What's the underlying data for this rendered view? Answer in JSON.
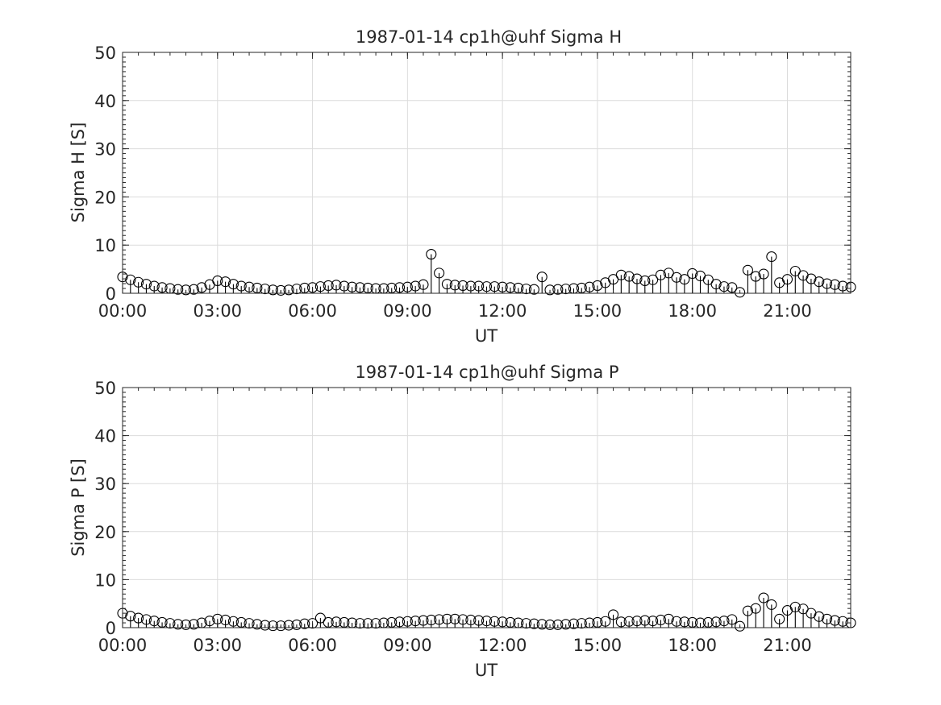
{
  "chart_data": [
    {
      "type": "scatter",
      "style": "stem",
      "title": "1987-01-14  cp1h@uhf Sigma H",
      "xlabel": "UT",
      "ylabel": "Sigma H [S]",
      "xlim": [
        0,
        23
      ],
      "ylim": [
        0,
        50
      ],
      "xticks": [
        0,
        3,
        6,
        9,
        12,
        15,
        18,
        21
      ],
      "xtick_labels": [
        "00:00",
        "03:00",
        "06:00",
        "09:00",
        "12:00",
        "15:00",
        "18:00",
        "21:00"
      ],
      "yticks": [
        0,
        10,
        20,
        30,
        40,
        50
      ],
      "ytick_labels": [
        "0",
        "10",
        "20",
        "30",
        "40",
        "50"
      ],
      "grid": true,
      "marker": "open-circle",
      "marker_color": "#000000",
      "series": [
        {
          "x": [
            0.0,
            0.25,
            0.5,
            0.75,
            1.0,
            1.25,
            1.5,
            1.75,
            2.0,
            2.25,
            2.5,
            2.75,
            3.0,
            3.25,
            3.5,
            3.75,
            4.0,
            4.25,
            4.5,
            4.75,
            5.0,
            5.25,
            5.5,
            5.75,
            6.0,
            6.25,
            6.5,
            6.75,
            7.0,
            7.25,
            7.5,
            7.75,
            8.0,
            8.25,
            8.5,
            8.75,
            9.0,
            9.25,
            9.5,
            9.75,
            10.0,
            10.25,
            10.5,
            10.75,
            11.0,
            11.25,
            11.5,
            11.75,
            12.0,
            12.25,
            12.5,
            12.75,
            13.0,
            13.25,
            13.5,
            13.75,
            14.0,
            14.25,
            14.5,
            14.75,
            15.0,
            15.25,
            15.5,
            15.75,
            16.0,
            16.25,
            16.5,
            16.75,
            17.0,
            17.25,
            17.5,
            17.75,
            18.0,
            18.25,
            18.5,
            18.75,
            19.0,
            19.25,
            19.5,
            19.75,
            20.0,
            20.25,
            20.5,
            20.75,
            21.0,
            21.25,
            21.5,
            21.75,
            22.0,
            22.25,
            22.5,
            22.75,
            23.0
          ],
          "y": [
            3.4,
            2.8,
            2.3,
            1.9,
            1.5,
            1.2,
            1.0,
            0.8,
            0.7,
            0.8,
            1.2,
            1.8,
            2.6,
            2.4,
            1.9,
            1.5,
            1.3,
            1.1,
            0.9,
            0.7,
            0.6,
            0.7,
            0.9,
            1.1,
            1.2,
            1.4,
            1.6,
            1.7,
            1.5,
            1.3,
            1.2,
            1.1,
            1.0,
            1.0,
            1.1,
            1.2,
            1.3,
            1.5,
            1.8,
            8.1,
            4.2,
            1.9,
            1.7,
            1.6,
            1.5,
            1.5,
            1.4,
            1.4,
            1.3,
            1.2,
            1.1,
            0.9,
            0.8,
            3.4,
            0.7,
            0.8,
            0.9,
            1.0,
            1.1,
            1.3,
            1.6,
            2.2,
            2.9,
            3.8,
            3.5,
            3.0,
            2.6,
            2.8,
            3.8,
            4.2,
            3.3,
            2.9,
            4.1,
            3.6,
            2.8,
            1.9,
            1.4,
            1.2,
            0.2,
            4.8,
            3.5,
            4.0,
            7.6,
            2.2,
            2.9,
            4.6,
            3.7,
            3.0,
            2.4,
            2.0,
            1.8,
            1.5,
            1.3
          ]
        }
      ]
    },
    {
      "type": "scatter",
      "style": "stem",
      "title": "1987-01-14  cp1h@uhf Sigma P",
      "xlabel": "UT",
      "ylabel": "Sigma P [S]",
      "xlim": [
        0,
        23
      ],
      "ylim": [
        0,
        50
      ],
      "xticks": [
        0,
        3,
        6,
        9,
        12,
        15,
        18,
        21
      ],
      "xtick_labels": [
        "00:00",
        "03:00",
        "06:00",
        "09:00",
        "12:00",
        "15:00",
        "18:00",
        "21:00"
      ],
      "yticks": [
        0,
        10,
        20,
        30,
        40,
        50
      ],
      "ytick_labels": [
        "0",
        "10",
        "20",
        "30",
        "40",
        "50"
      ],
      "grid": true,
      "marker": "open-circle",
      "marker_color": "#000000",
      "series": [
        {
          "x": [
            0.0,
            0.25,
            0.5,
            0.75,
            1.0,
            1.25,
            1.5,
            1.75,
            2.0,
            2.25,
            2.5,
            2.75,
            3.0,
            3.25,
            3.5,
            3.75,
            4.0,
            4.25,
            4.5,
            4.75,
            5.0,
            5.25,
            5.5,
            5.75,
            6.0,
            6.25,
            6.5,
            6.75,
            7.0,
            7.25,
            7.5,
            7.75,
            8.0,
            8.25,
            8.5,
            8.75,
            9.0,
            9.25,
            9.5,
            9.75,
            10.0,
            10.25,
            10.5,
            10.75,
            11.0,
            11.25,
            11.5,
            11.75,
            12.0,
            12.25,
            12.5,
            12.75,
            13.0,
            13.25,
            13.5,
            13.75,
            14.0,
            14.25,
            14.5,
            14.75,
            15.0,
            15.25,
            15.5,
            15.75,
            16.0,
            16.25,
            16.5,
            16.75,
            17.0,
            17.25,
            17.5,
            17.75,
            18.0,
            18.25,
            18.5,
            18.75,
            19.0,
            19.25,
            19.5,
            19.75,
            20.0,
            20.25,
            20.5,
            20.75,
            21.0,
            21.25,
            21.5,
            21.75,
            22.0,
            22.25,
            22.5,
            22.75,
            23.0
          ],
          "y": [
            3.0,
            2.4,
            2.0,
            1.7,
            1.4,
            1.1,
            0.9,
            0.7,
            0.6,
            0.7,
            1.0,
            1.4,
            1.8,
            1.6,
            1.3,
            1.1,
            0.9,
            0.7,
            0.5,
            0.4,
            0.4,
            0.5,
            0.6,
            0.8,
            0.9,
            2.0,
            1.1,
            1.2,
            1.1,
            1.0,
            0.9,
            0.9,
            0.9,
            1.0,
            1.1,
            1.2,
            1.3,
            1.4,
            1.5,
            1.6,
            1.7,
            1.8,
            1.8,
            1.7,
            1.6,
            1.5,
            1.4,
            1.3,
            1.2,
            1.1,
            1.0,
            0.9,
            0.8,
            0.7,
            0.6,
            0.6,
            0.7,
            0.8,
            0.9,
            1.0,
            1.1,
            1.3,
            2.7,
            1.2,
            1.3,
            1.4,
            1.5,
            1.4,
            1.6,
            1.8,
            1.3,
            1.2,
            1.1,
            1.0,
            1.1,
            1.2,
            1.4,
            1.7,
            0.3,
            3.5,
            4.0,
            6.2,
            4.8,
            1.8,
            3.6,
            4.3,
            3.9,
            3.0,
            2.3,
            1.8,
            1.5,
            1.3,
            1.0
          ]
        }
      ]
    }
  ]
}
